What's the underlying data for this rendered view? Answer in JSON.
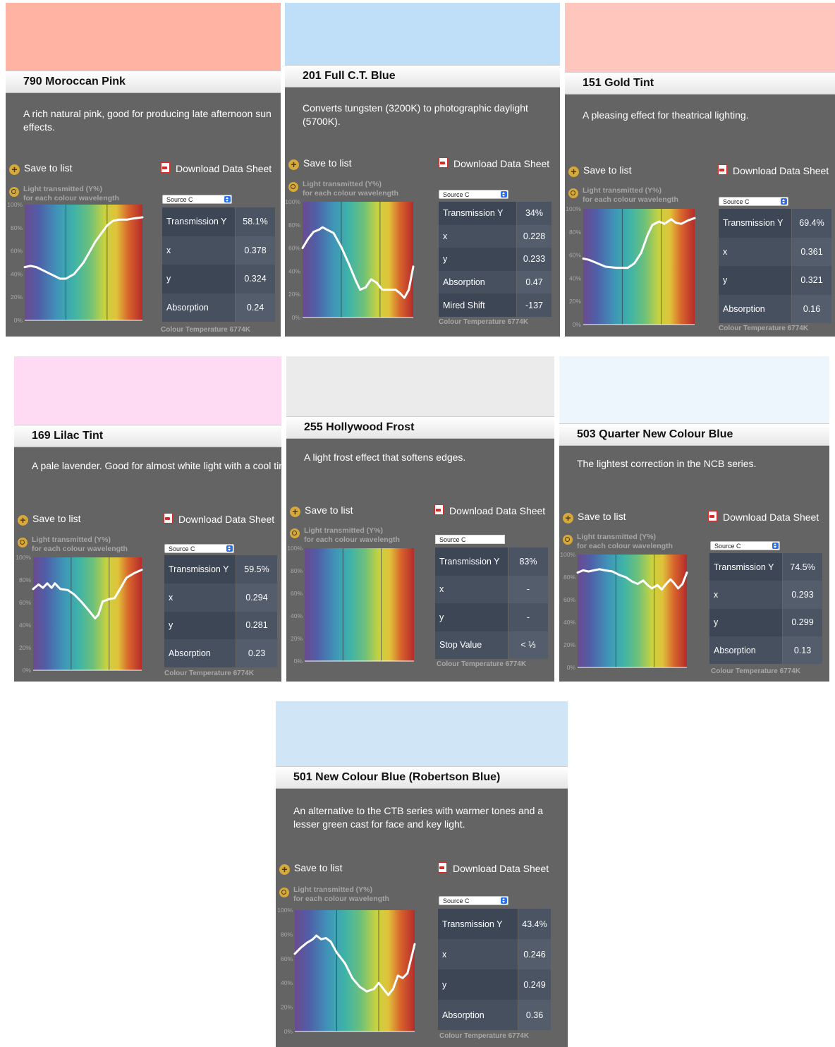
{
  "labels": {
    "save": "Save to list",
    "download": "Download Data Sheet",
    "chart_line1": "Light transmitted (Y%)",
    "chart_line2": "for each colour wavelength",
    "source": "Source C",
    "color_temp": "Colour Temperature 6774K",
    "y_ticks": [
      "100%",
      "80%",
      "60%",
      "40%",
      "20%",
      "0%"
    ]
  },
  "filters": [
    {
      "name": "790 Moroccan Pink",
      "swatch_color": "#ffb3a3",
      "description": "A rich natural pink, good for producing late afternoon sun effects.",
      "table": [
        [
          "Transmission Y",
          "58.1%"
        ],
        [
          "x",
          "0.378"
        ],
        [
          "y",
          "0.324"
        ],
        [
          "Absorption",
          "0.24"
        ]
      ],
      "curve": [
        [
          0,
          46
        ],
        [
          0.05,
          47
        ],
        [
          0.1,
          46
        ],
        [
          0.2,
          41
        ],
        [
          0.3,
          36
        ],
        [
          0.35,
          36
        ],
        [
          0.42,
          40
        ],
        [
          0.5,
          50
        ],
        [
          0.6,
          68
        ],
        [
          0.7,
          82
        ],
        [
          0.75,
          86
        ],
        [
          0.8,
          87
        ],
        [
          0.87,
          87
        ],
        [
          0.92,
          88
        ],
        [
          1,
          89
        ]
      ]
    },
    {
      "name": "201 Full C.T. Blue",
      "swatch_color": "#bfdff8",
      "description": "Converts tungsten (3200K) to photographic daylight (5700K).",
      "table": [
        [
          "Transmission Y",
          "34%"
        ],
        [
          "x",
          "0.228"
        ],
        [
          "y",
          "0.233"
        ],
        [
          "Absorption",
          "0.47"
        ],
        [
          "Mired Shift",
          "-137"
        ]
      ],
      "curve": [
        [
          0,
          60
        ],
        [
          0.05,
          68
        ],
        [
          0.1,
          74
        ],
        [
          0.15,
          76
        ],
        [
          0.18,
          78
        ],
        [
          0.22,
          76
        ],
        [
          0.28,
          73
        ],
        [
          0.35,
          61
        ],
        [
          0.42,
          46
        ],
        [
          0.48,
          32
        ],
        [
          0.52,
          24
        ],
        [
          0.57,
          26
        ],
        [
          0.62,
          33
        ],
        [
          0.67,
          30
        ],
        [
          0.72,
          24
        ],
        [
          0.78,
          24
        ],
        [
          0.84,
          24
        ],
        [
          0.88,
          21
        ],
        [
          0.92,
          17
        ],
        [
          0.96,
          24
        ],
        [
          1,
          44
        ]
      ]
    },
    {
      "name": "151 Gold Tint",
      "swatch_color": "#ffc6bd",
      "description": "A pleasing effect for theatrical lighting.",
      "table": [
        [
          "Transmission Y",
          "69.4%"
        ],
        [
          "x",
          "0.361"
        ],
        [
          "y",
          "0.321"
        ],
        [
          "Absorption",
          "0.16"
        ]
      ],
      "curve": [
        [
          0,
          57
        ],
        [
          0.05,
          56
        ],
        [
          0.1,
          54
        ],
        [
          0.2,
          50
        ],
        [
          0.3,
          49
        ],
        [
          0.4,
          49
        ],
        [
          0.46,
          53
        ],
        [
          0.52,
          62
        ],
        [
          0.58,
          78
        ],
        [
          0.62,
          86
        ],
        [
          0.68,
          89
        ],
        [
          0.73,
          87
        ],
        [
          0.79,
          91
        ],
        [
          0.83,
          88
        ],
        [
          0.88,
          87
        ],
        [
          0.94,
          90
        ],
        [
          1,
          92
        ]
      ]
    },
    {
      "name": "169 Lilac Tint",
      "swatch_color": "#ffdaf2",
      "description": "A pale lavender. Good for almost white light with a cool tint",
      "table": [
        [
          "Transmission Y",
          "59.5%"
        ],
        [
          "x",
          "0.294"
        ],
        [
          "y",
          "0.281"
        ],
        [
          "Absorption",
          "0.23"
        ]
      ],
      "curve": [
        [
          0,
          72
        ],
        [
          0.05,
          76
        ],
        [
          0.09,
          73
        ],
        [
          0.13,
          77
        ],
        [
          0.17,
          73
        ],
        [
          0.2,
          77
        ],
        [
          0.25,
          72
        ],
        [
          0.32,
          71
        ],
        [
          0.38,
          67
        ],
        [
          0.45,
          60
        ],
        [
          0.52,
          52
        ],
        [
          0.57,
          46
        ],
        [
          0.6,
          49
        ],
        [
          0.64,
          61
        ],
        [
          0.7,
          63
        ],
        [
          0.75,
          64
        ],
        [
          0.8,
          72
        ],
        [
          0.86,
          82
        ],
        [
          0.93,
          86
        ],
        [
          1,
          89
        ]
      ]
    },
    {
      "name": "255 Hollywood Frost",
      "swatch_color": "#ebebeb",
      "description": "A light frost effect that softens edges.",
      "table": [
        [
          "Transmission Y",
          "83%"
        ],
        [
          "x",
          "-"
        ],
        [
          "y",
          "-"
        ],
        [
          "Stop Value",
          "< ⅓"
        ]
      ],
      "curve": []
    },
    {
      "name": "503 Quarter New Colour Blue",
      "swatch_color": "#eef6fd",
      "description": "The lightest correction in the NCB series.",
      "table": [
        [
          "Transmission Y",
          "74.5%"
        ],
        [
          "x",
          "0.293"
        ],
        [
          "y",
          "0.299"
        ],
        [
          "Absorption",
          "0.13"
        ]
      ],
      "curve": [
        [
          0,
          84
        ],
        [
          0.05,
          86
        ],
        [
          0.1,
          85
        ],
        [
          0.15,
          86
        ],
        [
          0.2,
          87
        ],
        [
          0.25,
          86
        ],
        [
          0.32,
          85
        ],
        [
          0.38,
          82
        ],
        [
          0.44,
          80
        ],
        [
          0.5,
          76
        ],
        [
          0.55,
          74
        ],
        [
          0.6,
          77
        ],
        [
          0.64,
          73
        ],
        [
          0.68,
          70
        ],
        [
          0.73,
          73
        ],
        [
          0.77,
          69
        ],
        [
          0.81,
          74
        ],
        [
          0.85,
          78
        ],
        [
          0.88,
          75
        ],
        [
          0.92,
          70
        ],
        [
          0.96,
          74
        ],
        [
          1,
          84
        ]
      ]
    },
    {
      "name": "501 New Colour Blue (Robertson Blue)",
      "swatch_color": "#d0e6f7",
      "description": "An alternative to the CTB series with warmer tones and a lesser green cast for face and key light.",
      "table": [
        [
          "Transmission Y",
          "43.4%"
        ],
        [
          "x",
          "0.246"
        ],
        [
          "y",
          "0.249"
        ],
        [
          "Absorption",
          "0.36"
        ]
      ],
      "curve": [
        [
          0,
          64
        ],
        [
          0.05,
          69
        ],
        [
          0.1,
          73
        ],
        [
          0.15,
          76
        ],
        [
          0.18,
          79
        ],
        [
          0.22,
          76
        ],
        [
          0.26,
          77
        ],
        [
          0.3,
          74
        ],
        [
          0.35,
          65
        ],
        [
          0.42,
          56
        ],
        [
          0.48,
          44
        ],
        [
          0.54,
          37
        ],
        [
          0.6,
          33
        ],
        [
          0.66,
          35
        ],
        [
          0.7,
          40
        ],
        [
          0.74,
          35
        ],
        [
          0.78,
          30
        ],
        [
          0.82,
          35
        ],
        [
          0.86,
          46
        ],
        [
          0.9,
          44
        ],
        [
          0.94,
          48
        ],
        [
          1,
          72
        ]
      ]
    }
  ]
}
